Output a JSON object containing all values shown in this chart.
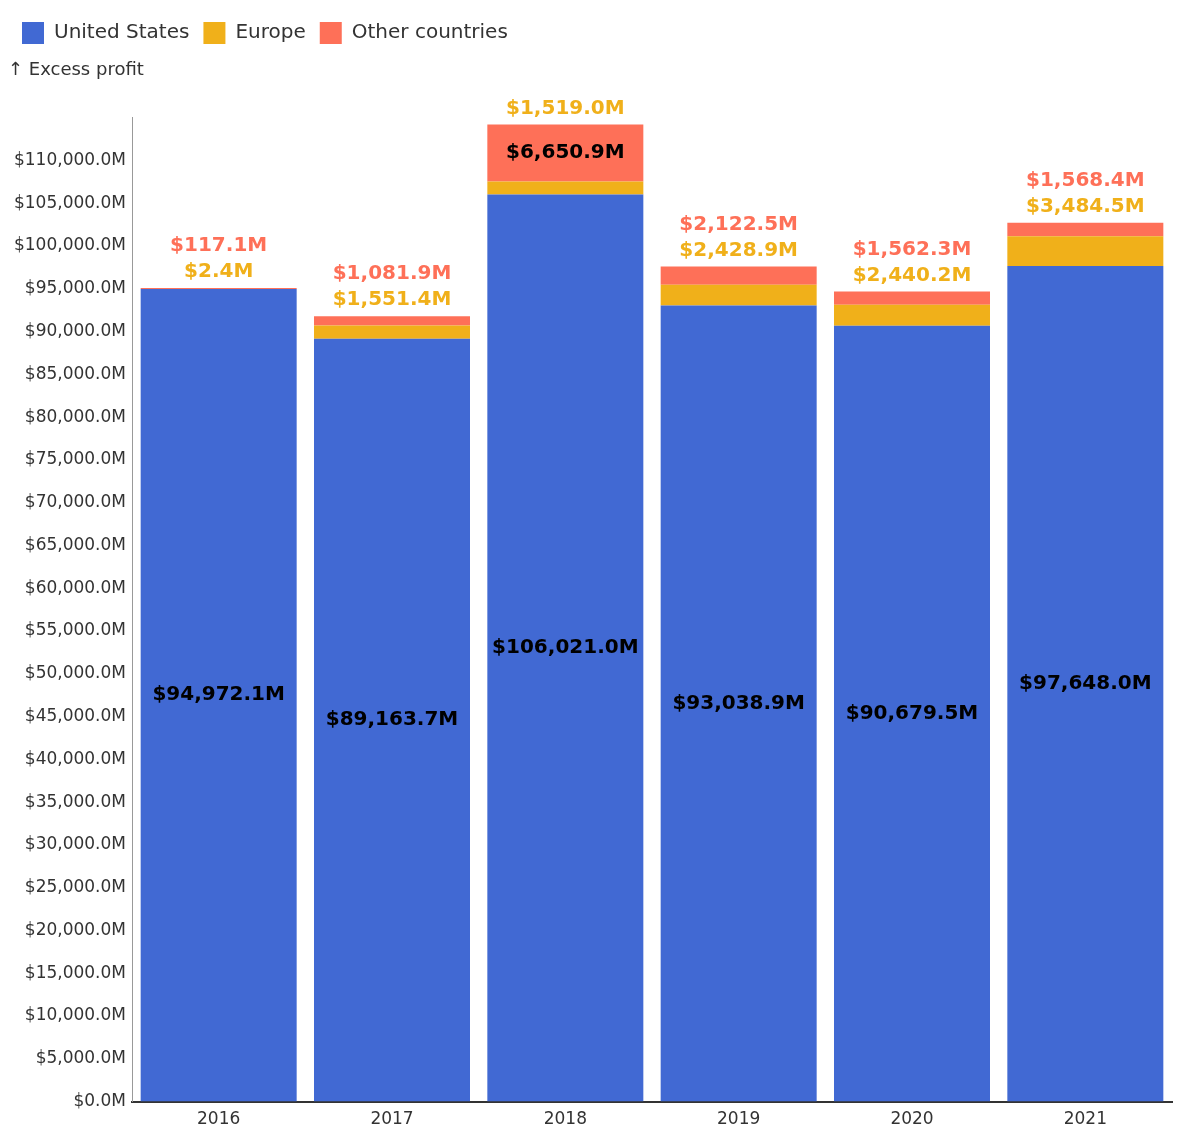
{
  "chart_data": {
    "type": "bar",
    "stacked": true,
    "ylabel": "↑ Excess profit",
    "categories": [
      "2016",
      "2017",
      "2018",
      "2019",
      "2020",
      "2021"
    ],
    "series": [
      {
        "name": "United States",
        "color": "#4169d3",
        "values": [
          94972.1,
          89163.7,
          106021.0,
          93038.9,
          90679.5,
          97648.0
        ],
        "value_labels": [
          "$94,972.1M",
          "$89,163.7M",
          "$106,021.0M",
          "$93,038.9M",
          "$90,679.5M",
          "$97,648.0M"
        ]
      },
      {
        "name": "Europe",
        "color": "#f0b01a",
        "values": [
          2.4,
          1551.4,
          1519.0,
          2428.9,
          2440.2,
          3484.5
        ],
        "value_labels": [
          "$2.4M",
          "$1,551.4M",
          "$1,519.0M",
          "$2,428.9M",
          "$2,440.2M",
          "$3,484.5M"
        ]
      },
      {
        "name": "Other countries",
        "color": "#fe7058",
        "values": [
          117.1,
          1081.9,
          6650.9,
          2122.5,
          1562.3,
          1568.4
        ],
        "value_labels": [
          "$117.1M",
          "$1,081.9M",
          "$6,650.9M",
          "$2,122.5M",
          "$1,562.3M",
          "$1,568.4M"
        ]
      }
    ],
    "yticks": [
      {
        "value": 0,
        "label": "$0.0M"
      },
      {
        "value": 5000,
        "label": "$5,000.0M"
      },
      {
        "value": 10000,
        "label": "$10,000.0M"
      },
      {
        "value": 15000,
        "label": "$15,000.0M"
      },
      {
        "value": 20000,
        "label": "$20,000.0M"
      },
      {
        "value": 25000,
        "label": "$25,000.0M"
      },
      {
        "value": 30000,
        "label": "$30,000.0M"
      },
      {
        "value": 35000,
        "label": "$35,000.0M"
      },
      {
        "value": 40000,
        "label": "$40,000.0M"
      },
      {
        "value": 45000,
        "label": "$45,000.0M"
      },
      {
        "value": 50000,
        "label": "$50,000.0M"
      },
      {
        "value": 55000,
        "label": "$55,000.0M"
      },
      {
        "value": 60000,
        "label": "$60,000.0M"
      },
      {
        "value": 65000,
        "label": "$65,000.0M"
      },
      {
        "value": 70000,
        "label": "$70,000.0M"
      },
      {
        "value": 75000,
        "label": "$75,000.0M"
      },
      {
        "value": 80000,
        "label": "$80,000.0M"
      },
      {
        "value": 85000,
        "label": "$85,000.0M"
      },
      {
        "value": 90000,
        "label": "$90,000.0M"
      },
      {
        "value": 95000,
        "label": "$95,000.0M"
      },
      {
        "value": 100000,
        "label": "$100,000.0M"
      },
      {
        "value": 105000,
        "label": "$105,000.0M"
      },
      {
        "value": 110000,
        "label": "$110,000.0M"
      }
    ],
    "ylim": [
      0,
      115000
    ],
    "grid": false,
    "legend": "top left"
  }
}
